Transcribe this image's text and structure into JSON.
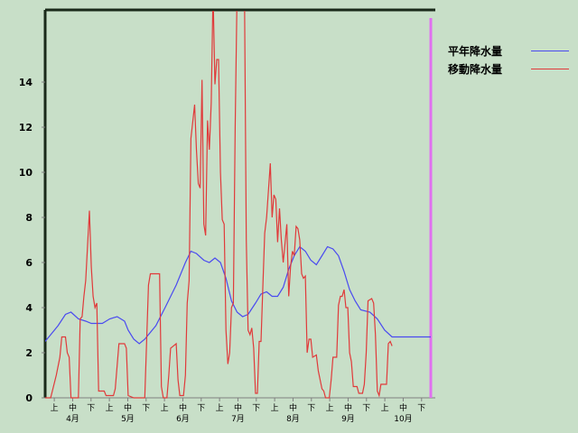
{
  "chart_data": {
    "type": "line",
    "y_ticks": [
      "0",
      "2",
      "4",
      "6",
      "8",
      "10",
      "12",
      "14"
    ],
    "ylim": [
      0,
      17
    ],
    "x_minor_labels": [
      "上",
      "中",
      "下",
      "上",
      "中",
      "下",
      "上",
      "中",
      "下",
      "上",
      "中",
      "下",
      "上",
      "中",
      "下",
      "上",
      "中",
      "下",
      "上",
      "中",
      "下"
    ],
    "x_month_labels": [
      "4月",
      "5月",
      "6月",
      "7月",
      "8月",
      "9月",
      "10月"
    ],
    "x_count": 210,
    "series": [
      {
        "name": "平年降水量",
        "color": "#4a4af0",
        "points": [
          [
            0,
            2.5
          ],
          [
            2,
            2.7
          ],
          [
            7,
            3.2
          ],
          [
            11,
            3.7
          ],
          [
            14,
            3.8
          ],
          [
            18,
            3.5
          ],
          [
            22,
            3.4
          ],
          [
            25,
            3.3
          ],
          [
            31,
            3.3
          ],
          [
            35,
            3.5
          ],
          [
            39,
            3.6
          ],
          [
            43,
            3.4
          ],
          [
            45,
            3.0
          ],
          [
            48,
            2.6
          ],
          [
            51,
            2.4
          ],
          [
            54,
            2.6
          ],
          [
            60,
            3.2
          ],
          [
            65,
            4.0
          ],
          [
            71,
            5.0
          ],
          [
            76,
            6.0
          ],
          [
            79,
            6.5
          ],
          [
            82,
            6.4
          ],
          [
            86,
            6.1
          ],
          [
            89,
            6.0
          ],
          [
            92,
            6.2
          ],
          [
            95,
            6.0
          ],
          [
            98,
            5.3
          ],
          [
            101,
            4.3
          ],
          [
            104,
            3.8
          ],
          [
            107,
            3.6
          ],
          [
            110,
            3.7
          ],
          [
            114,
            4.2
          ],
          [
            117,
            4.6
          ],
          [
            120,
            4.7
          ],
          [
            123,
            4.5
          ],
          [
            126,
            4.5
          ],
          [
            129,
            4.9
          ],
          [
            132,
            5.7
          ],
          [
            135,
            6.3
          ],
          [
            138,
            6.7
          ],
          [
            141,
            6.5
          ],
          [
            144,
            6.1
          ],
          [
            147,
            5.9
          ],
          [
            150,
            6.3
          ],
          [
            153,
            6.7
          ],
          [
            156,
            6.6
          ],
          [
            159,
            6.3
          ],
          [
            162,
            5.6
          ],
          [
            165,
            4.8
          ],
          [
            168,
            4.3
          ],
          [
            171,
            3.9
          ],
          [
            176,
            3.8
          ],
          [
            180,
            3.5
          ],
          [
            184,
            3.0
          ],
          [
            188,
            2.7
          ],
          [
            209,
            2.7
          ]
        ]
      },
      {
        "name": "移動降水量",
        "color": "#e03a3a",
        "points": [
          [
            0,
            0
          ],
          [
            3,
            0
          ],
          [
            6,
            1
          ],
          [
            8,
            1.8
          ],
          [
            9,
            2.7
          ],
          [
            11,
            2.7
          ],
          [
            12,
            2
          ],
          [
            13,
            1.8
          ],
          [
            14,
            0
          ],
          [
            18,
            0
          ],
          [
            19,
            3.5
          ],
          [
            20,
            3.6
          ],
          [
            21,
            4.5
          ],
          [
            22,
            5.2
          ],
          [
            24,
            8.3
          ],
          [
            25,
            5.8
          ],
          [
            26,
            4.5
          ],
          [
            27,
            4
          ],
          [
            28,
            4.2
          ],
          [
            29,
            0.3
          ],
          [
            32,
            0.3
          ],
          [
            33,
            0.1
          ],
          [
            37,
            0.1
          ],
          [
            38,
            0.4
          ],
          [
            40,
            2.4
          ],
          [
            43,
            2.4
          ],
          [
            44,
            2.2
          ],
          [
            45,
            0.1
          ],
          [
            48,
            0
          ],
          [
            54,
            0
          ],
          [
            56,
            5.0
          ],
          [
            57,
            5.5
          ],
          [
            62,
            5.5
          ],
          [
            63,
            0.5
          ],
          [
            64,
            0
          ],
          [
            66,
            0
          ],
          [
            67,
            1
          ],
          [
            68,
            2.2
          ],
          [
            71,
            2.4
          ],
          [
            72,
            0.8
          ],
          [
            73,
            0.1
          ],
          [
            75,
            0.1
          ],
          [
            76,
            1
          ],
          [
            77,
            4.2
          ],
          [
            78,
            5.2
          ],
          [
            79,
            11.5
          ],
          [
            81,
            13.0
          ],
          [
            82,
            11
          ],
          [
            83,
            9.5
          ],
          [
            84,
            9.3
          ],
          [
            85,
            14.1
          ],
          [
            86,
            7.7
          ],
          [
            87,
            7.2
          ],
          [
            88,
            12.3
          ],
          [
            89,
            11.0
          ],
          [
            90,
            13.1
          ],
          [
            91,
            18.0
          ],
          [
            92,
            13.9
          ],
          [
            93,
            15.0
          ],
          [
            94,
            15.0
          ],
          [
            95,
            10
          ],
          [
            96,
            7.9
          ],
          [
            97,
            7.7
          ],
          [
            98,
            3.0
          ],
          [
            99,
            1.5
          ],
          [
            100,
            2.0
          ],
          [
            101,
            4.0
          ],
          [
            102,
            4.2
          ],
          [
            103,
            12
          ],
          [
            104,
            18
          ],
          [
            108,
            18
          ],
          [
            109,
            7
          ],
          [
            110,
            3.0
          ],
          [
            111,
            2.8
          ],
          [
            112,
            3.1
          ],
          [
            113,
            2.2
          ],
          [
            114,
            0.2
          ],
          [
            115,
            0.2
          ],
          [
            116,
            2.5
          ],
          [
            117,
            2.5
          ],
          [
            118,
            5.0
          ],
          [
            119,
            7.3
          ],
          [
            120,
            8.0
          ],
          [
            122,
            10.4
          ],
          [
            123,
            8.0
          ],
          [
            124,
            9.0
          ],
          [
            125,
            8.8
          ],
          [
            126,
            6.9
          ],
          [
            127,
            8.4
          ],
          [
            128,
            7.0
          ],
          [
            129,
            6.0
          ],
          [
            131,
            7.7
          ],
          [
            132,
            4.5
          ],
          [
            133,
            5.8
          ],
          [
            134,
            6.5
          ],
          [
            135,
            6.3
          ],
          [
            136,
            7.6
          ],
          [
            137,
            7.5
          ],
          [
            138,
            7.0
          ],
          [
            139,
            5.5
          ],
          [
            140,
            5.3
          ],
          [
            141,
            5.4
          ],
          [
            142,
            2.0
          ],
          [
            143,
            2.6
          ],
          [
            144,
            2.6
          ],
          [
            145,
            1.8
          ],
          [
            147,
            1.9
          ],
          [
            148,
            1.2
          ],
          [
            150,
            0.4
          ],
          [
            151,
            0.3
          ],
          [
            152,
            0
          ],
          [
            154,
            0
          ],
          [
            155,
            0.8
          ],
          [
            156,
            1.8
          ],
          [
            158,
            1.8
          ],
          [
            159,
            4.1
          ],
          [
            160,
            4.5
          ],
          [
            161,
            4.5
          ],
          [
            162,
            4.8
          ],
          [
            163,
            4.0
          ],
          [
            164,
            4.0
          ],
          [
            165,
            2.0
          ],
          [
            166,
            1.6
          ],
          [
            167,
            0.5
          ],
          [
            169,
            0.5
          ],
          [
            170,
            0.2
          ],
          [
            172,
            0.2
          ],
          [
            173,
            0.6
          ],
          [
            174,
            2.0
          ],
          [
            175,
            4.3
          ],
          [
            177,
            4.4
          ],
          [
            178,
            4.2
          ],
          [
            179,
            2.8
          ],
          [
            180,
            0.3
          ],
          [
            181,
            0.1
          ],
          [
            182,
            0.6
          ],
          [
            185,
            0.6
          ],
          [
            186,
            2.4
          ],
          [
            187,
            2.5
          ],
          [
            188,
            2.3
          ]
        ]
      }
    ]
  }
}
